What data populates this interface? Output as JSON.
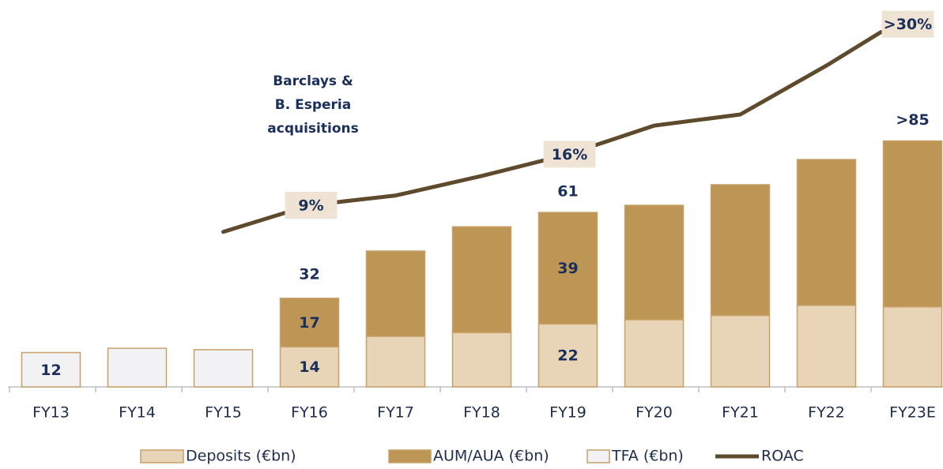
{
  "chart_data": {
    "type": "bar",
    "stacked": true,
    "categories": [
      "FY13",
      "FY14",
      "FY15",
      "FY16",
      "FY17",
      "FY18",
      "FY19",
      "FY20",
      "FY21",
      "FY22",
      "FY23E"
    ],
    "series": [
      {
        "name": "Deposits (€bn)",
        "color": "#e8d5b7",
        "values": [
          null,
          null,
          null,
          14,
          17.7,
          19,
          22,
          23.5,
          25,
          28.5,
          28
        ],
        "value_labels": [
          null,
          null,
          null,
          "14",
          null,
          null,
          "22",
          null,
          null,
          null,
          null
        ]
      },
      {
        "name": "AUM/AUA (€bn)",
        "color": "#bd9655",
        "values": [
          null,
          null,
          null,
          17,
          29.8,
          37,
          39,
          40,
          45.7,
          51,
          58
        ],
        "value_labels": [
          null,
          null,
          null,
          "17",
          null,
          null,
          "39",
          null,
          null,
          null,
          null
        ]
      },
      {
        "name": "TFA (€bn)",
        "color": "#f2f1f3",
        "values": [
          12,
          13.5,
          13,
          null,
          null,
          null,
          null,
          null,
          null,
          null,
          null
        ],
        "value_labels": [
          "12",
          null,
          null,
          null,
          null,
          null,
          null,
          null,
          null,
          null,
          null
        ]
      },
      {
        "name": "ROAC",
        "type": "line",
        "axis": "y2",
        "color": "#5e4a2c",
        "values": [
          null,
          null,
          5.2,
          9,
          10.4,
          13.2,
          16.3,
          20.4,
          22,
          29,
          33.8
        ],
        "value_labels": [
          null,
          null,
          null,
          "9%",
          null,
          null,
          "16%",
          null,
          null,
          null,
          ">30%"
        ]
      }
    ],
    "totals": {
      "values": [
        null,
        null,
        null,
        32,
        null,
        null,
        61,
        null,
        null,
        null,
        86
      ],
      "value_labels": [
        null,
        null,
        null,
        "32",
        null,
        null,
        "61",
        null,
        null,
        null,
        ">85"
      ]
    },
    "annotation": [
      "Barclays &",
      "B. Esperia",
      "acquisitions"
    ],
    "ylim": [
      0,
      127
    ],
    "y2lim": [
      -17,
      35
    ],
    "legend": "bottom"
  }
}
